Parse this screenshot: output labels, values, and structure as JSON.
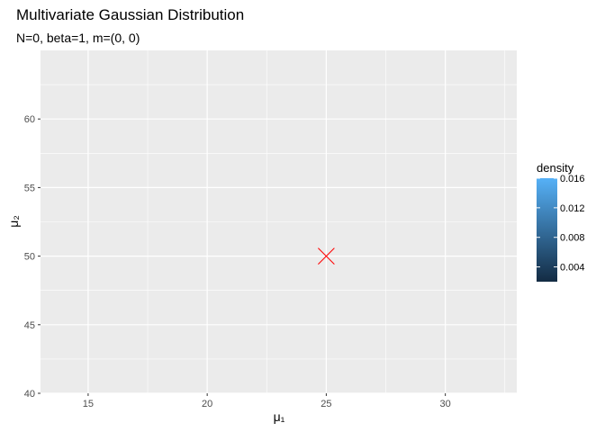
{
  "chart_data": {
    "type": "heatmap",
    "title": "Multivariate Gaussian Distribution",
    "subtitle": "N=0, beta=1, m=(0, 0)",
    "xlabel": "μ₁",
    "ylabel": "μ₂",
    "xlim": [
      13,
      33
    ],
    "ylim": [
      40,
      65
    ],
    "x_ticks": [
      15,
      20,
      25,
      30
    ],
    "x_minor": [
      17.5,
      22.5,
      27.5,
      32.5
    ],
    "y_ticks": [
      40,
      45,
      50,
      55,
      60
    ],
    "y_minor": [
      42.5,
      47.5,
      52.5,
      57.5,
      62.5
    ],
    "grid": true,
    "panel_color": "#ebebeb",
    "points": [
      {
        "x": 25,
        "y": 50,
        "shape": "cross",
        "color": "#ff0000"
      }
    ],
    "legend": {
      "title": "density",
      "placement": "right",
      "range": [
        0.002,
        0.016
      ],
      "ticks": [
        "0.004",
        "0.008",
        "0.012",
        "0.016"
      ],
      "tick_values": [
        0.004,
        0.008,
        0.012,
        0.016
      ],
      "color_low": "#132b43",
      "color_high": "#56b1f7"
    }
  }
}
